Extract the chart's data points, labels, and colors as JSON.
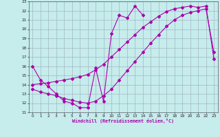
{
  "bg_color": "#c6ecec",
  "line_color": "#aa00aa",
  "grid_color": "#99aabb",
  "xlabel": "Windchill (Refroidissement éolien,°C)",
  "xlim_min": -0.5,
  "xlim_max": 23.5,
  "ylim_min": 11,
  "ylim_max": 23,
  "xticks": [
    0,
    1,
    2,
    3,
    4,
    5,
    6,
    7,
    8,
    9,
    10,
    11,
    12,
    13,
    14,
    15,
    16,
    17,
    18,
    19,
    20,
    21,
    22,
    23
  ],
  "yticks": [
    11,
    12,
    13,
    14,
    15,
    16,
    17,
    18,
    19,
    20,
    21,
    22,
    23
  ],
  "line1_x": [
    0,
    1,
    2,
    3,
    4,
    5,
    6,
    7,
    8,
    9,
    10,
    11,
    12,
    13,
    14
  ],
  "line1_y": [
    16.0,
    14.5,
    13.8,
    13.0,
    12.2,
    12.0,
    11.5,
    11.5,
    15.8,
    12.2,
    19.5,
    21.5,
    21.2,
    22.5,
    21.5
  ],
  "line2_x": [
    0,
    1,
    2,
    3,
    4,
    5,
    6,
    7,
    8,
    9,
    10,
    11,
    12,
    13,
    14,
    15,
    16,
    17,
    18,
    19,
    20,
    21,
    22,
    23
  ],
  "line2_y": [
    14.0,
    14.1,
    14.2,
    14.35,
    14.5,
    14.65,
    14.85,
    15.1,
    15.6,
    16.2,
    17.0,
    17.8,
    18.6,
    19.4,
    20.2,
    20.8,
    21.4,
    21.9,
    22.2,
    22.35,
    22.5,
    22.35,
    22.5,
    16.8
  ],
  "line3_x": [
    0,
    1,
    2,
    3,
    4,
    5,
    6,
    7,
    8,
    9,
    10,
    11,
    12,
    13,
    14,
    15,
    16,
    17,
    18,
    19,
    20,
    21,
    22,
    23
  ],
  "line3_y": [
    13.5,
    13.2,
    13.0,
    12.8,
    12.5,
    12.3,
    12.1,
    12.0,
    12.2,
    12.8,
    13.5,
    14.5,
    15.5,
    16.5,
    17.5,
    18.5,
    19.4,
    20.3,
    21.0,
    21.5,
    21.8,
    22.0,
    22.2,
    17.5
  ]
}
